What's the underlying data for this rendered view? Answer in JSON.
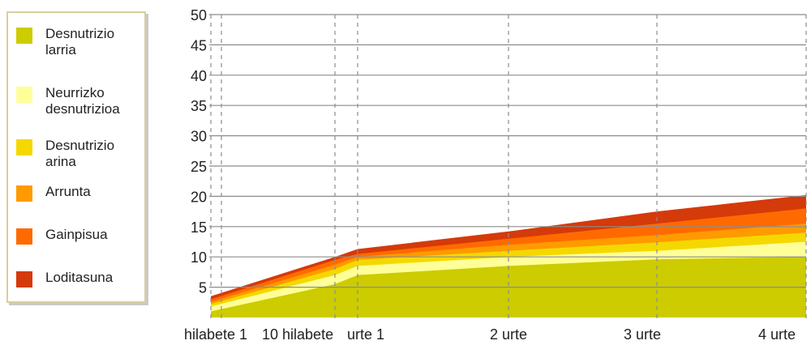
{
  "chart_data": {
    "type": "area",
    "stacked": true,
    "title": "",
    "xlabel": "",
    "ylabel": "",
    "ylim": [
      0,
      50
    ],
    "yticks": [
      5,
      10,
      15,
      20,
      25,
      30,
      35,
      40,
      45,
      50
    ],
    "xticks": [
      {
        "label": "hilabete 1",
        "month": 1
      },
      {
        "label": "10 hilabete",
        "month": 10
      },
      {
        "label": "urte 1",
        "month": 12
      },
      {
        "label": "2 urte",
        "month": 24
      },
      {
        "label": "3 urte",
        "month": 36
      },
      {
        "label": "4 urte",
        "month": 48
      }
    ],
    "x": [
      0,
      10,
      12,
      24,
      36,
      48
    ],
    "grid": true,
    "legend_position": "left",
    "series": [
      {
        "name": "Desnutrizio larria",
        "color": "#cccc00",
        "values": [
          1.0,
          5.5,
          7.0,
          8.5,
          9.6,
          10.0
        ]
      },
      {
        "name": "Neurrizko desnutrizioa",
        "color": "#ffff99",
        "values": [
          1.8,
          7.0,
          8.5,
          10.0,
          11.0,
          12.5
        ]
      },
      {
        "name": "Desnutrizio arina",
        "color": "#f5d800",
        "values": [
          2.2,
          8.0,
          9.5,
          11.0,
          12.4,
          14.0
        ]
      },
      {
        "name": "Arrunta",
        "color": "#ff9a00",
        "values": [
          2.6,
          8.7,
          10.0,
          12.0,
          13.6,
          15.5
        ]
      },
      {
        "name": "Gainpisua",
        "color": "#ff6a00",
        "values": [
          3.0,
          9.5,
          10.5,
          13.0,
          15.5,
          18.0
        ]
      },
      {
        "name": "Loditasuna",
        "color": "#d43a0a",
        "values": [
          3.5,
          10.0,
          11.3,
          14.2,
          17.5,
          20.2
        ]
      }
    ]
  }
}
